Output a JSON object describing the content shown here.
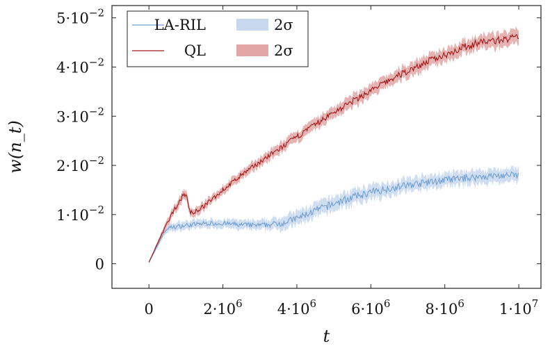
{
  "chart_data": {
    "type": "line",
    "title": "",
    "xlabel": "t",
    "ylabel": "w(n_t)",
    "xlim": [
      -1000000,
      10600000
    ],
    "ylim": [
      -0.005,
      0.0525
    ],
    "x_ticks": [
      {
        "value": 0,
        "mantissa": "0",
        "exponent": ""
      },
      {
        "value": 2000000,
        "mantissa": "2·10",
        "exponent": "6"
      },
      {
        "value": 4000000,
        "mantissa": "4·10",
        "exponent": "6"
      },
      {
        "value": 6000000,
        "mantissa": "6·10",
        "exponent": "6"
      },
      {
        "value": 8000000,
        "mantissa": "8·10",
        "exponent": "6"
      },
      {
        "value": 10000000,
        "mantissa": "1·10",
        "exponent": "7"
      }
    ],
    "y_ticks": [
      {
        "value": 0,
        "mantissa": "0",
        "exponent": ""
      },
      {
        "value": 0.01,
        "mantissa": "1·10",
        "exponent": "−2"
      },
      {
        "value": 0.02,
        "mantissa": "2·10",
        "exponent": "−2"
      },
      {
        "value": 0.03,
        "mantissa": "3·10",
        "exponent": "−2"
      },
      {
        "value": 0.04,
        "mantissa": "4·10",
        "exponent": "−2"
      },
      {
        "value": 0.05,
        "mantissa": "5·10",
        "exponent": "−2"
      }
    ],
    "grid": false,
    "legend": {
      "placement": "top-left",
      "entries": [
        {
          "label": "LA-RIL",
          "kind": "line",
          "color": "#6f9fd0"
        },
        {
          "label": "2σ",
          "kind": "band",
          "color": "#c7d7ee"
        },
        {
          "label": "QL",
          "kind": "line",
          "color": "#a01818"
        },
        {
          "label": "2σ",
          "kind": "band",
          "color": "#e2a6a6"
        }
      ]
    },
    "series": [
      {
        "name": "LA-RIL",
        "color": "#6f9fd0",
        "band_color": "#c7d7ee",
        "x": [
          0,
          100000,
          200000,
          300000,
          400000,
          500000,
          600000,
          800000,
          1000000,
          1500000,
          2000000,
          2500000,
          3000000,
          3300000,
          3600000,
          4000000,
          4500000,
          5000000,
          5500000,
          6000000,
          6500000,
          7000000,
          7500000,
          8000000,
          8500000,
          9000000,
          9500000,
          10000000
        ],
        "y": [
          0.0003,
          0.0018,
          0.0032,
          0.0048,
          0.0062,
          0.0072,
          0.0074,
          0.0076,
          0.0078,
          0.0082,
          0.0082,
          0.0079,
          0.0078,
          0.008,
          0.0083,
          0.0092,
          0.0108,
          0.0122,
          0.0135,
          0.0145,
          0.0153,
          0.016,
          0.0165,
          0.017,
          0.0174,
          0.0177,
          0.0179,
          0.018
        ],
        "sigma2": [
          0.0002,
          0.0003,
          0.0004,
          0.0005,
          0.0006,
          0.0007,
          0.0007,
          0.0008,
          0.0008,
          0.0008,
          0.0008,
          0.0009,
          0.0009,
          0.001,
          0.0012,
          0.0013,
          0.0014,
          0.0014,
          0.0014,
          0.0014,
          0.0013,
          0.0013,
          0.0013,
          0.0013,
          0.0013,
          0.0013,
          0.0013,
          0.0013
        ]
      },
      {
        "name": "QL",
        "color": "#a01818",
        "band_color": "#e2a6a6",
        "x": [
          0,
          100000,
          200000,
          300000,
          400000,
          500000,
          600000,
          700000,
          800000,
          900000,
          1000000,
          1050000,
          1100000,
          1200000,
          1500000,
          2000000,
          2500000,
          3000000,
          3500000,
          4000000,
          4500000,
          5000000,
          5500000,
          6000000,
          6500000,
          7000000,
          7500000,
          8000000,
          8500000,
          9000000,
          9500000,
          10000000
        ],
        "y": [
          0.0003,
          0.0019,
          0.0036,
          0.0052,
          0.0068,
          0.0083,
          0.0097,
          0.0112,
          0.0124,
          0.0136,
          0.0143,
          0.0125,
          0.0107,
          0.0103,
          0.0118,
          0.015,
          0.018,
          0.0207,
          0.0232,
          0.0258,
          0.0283,
          0.0308,
          0.033,
          0.0352,
          0.0373,
          0.0392,
          0.041,
          0.0425,
          0.044,
          0.0451,
          0.0455,
          0.046
        ],
        "sigma2": [
          0.0002,
          0.0003,
          0.0004,
          0.0005,
          0.0006,
          0.0007,
          0.0008,
          0.0008,
          0.0009,
          0.0009,
          0.0009,
          0.0009,
          0.0008,
          0.0008,
          0.0008,
          0.0008,
          0.0009,
          0.0009,
          0.001,
          0.001,
          0.0011,
          0.0011,
          0.0012,
          0.0012,
          0.0012,
          0.0013,
          0.0013,
          0.0013,
          0.0013,
          0.0013,
          0.0014,
          0.0014
        ]
      }
    ]
  }
}
